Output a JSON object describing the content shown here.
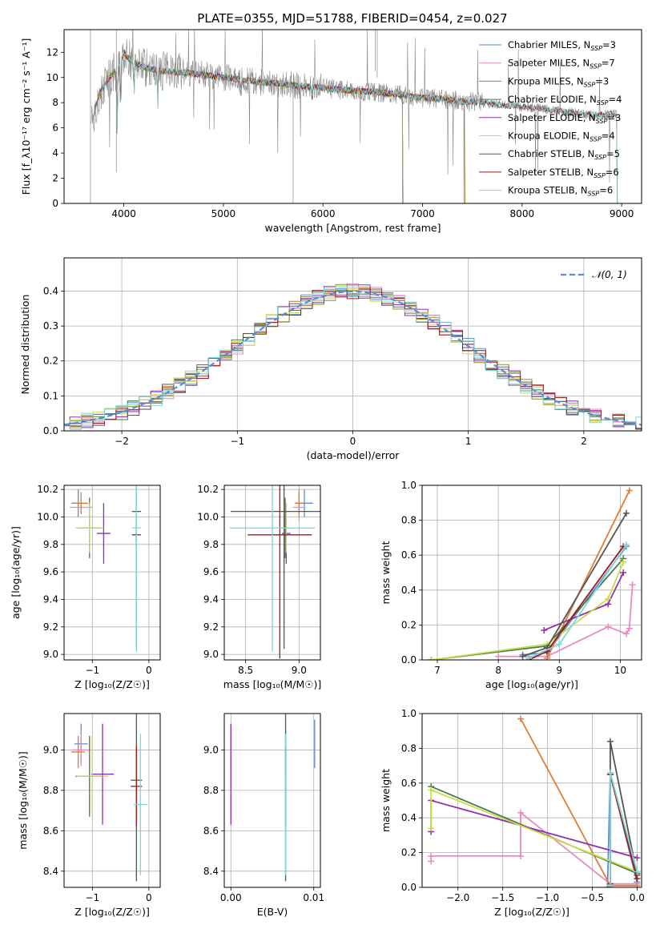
{
  "colors": {
    "chab_miles": "#5b8bd6",
    "salp_miles": "#e58ac2",
    "krou_miles": "#9a8a1a",
    "chab_elod": "#4a7a4a",
    "salp_elod": "#8e2fb0",
    "krou_elod": "#c9dd4a",
    "chab_stel": "#555555",
    "salp_stel": "#a01818",
    "krou_stel": "#7fd6d6",
    "data": "#888888",
    "orange": "#e07b32",
    "grid": "#b0b0b0"
  },
  "chart_data": [
    {
      "id": "spectrum",
      "type": "line",
      "title": "PLATE=0355, MJD=51788, FIBERID=0454, z=0.027",
      "xlabel": "wavelength [Angstrom, rest frame]",
      "ylabel": "Flux [f_λ10⁻¹⁷ erg cm⁻² s⁻¹ A⁻¹]",
      "xlim": [
        3400,
        9200
      ],
      "ylim": [
        0,
        13.8
      ],
      "xticks": [
        "4000",
        "5000",
        "6000",
        "7000",
        "8000",
        "9000"
      ],
      "yticks": [
        "0",
        "2",
        "4",
        "6",
        "8",
        "10",
        "12"
      ],
      "grid": false,
      "legend_position": "top-right",
      "legend": [
        {
          "label": "Chabrier MILES, N",
          "sub": "SSP",
          "n": "=3",
          "color": "#5b8bd6"
        },
        {
          "label": "Salpeter MILES, N",
          "sub": "SSP",
          "n": "=7",
          "color": "#e58ac2"
        },
        {
          "label": "Kroupa MILES, N",
          "sub": "SSP",
          "n": "=3",
          "color": "#9a8a1a"
        },
        {
          "label": "Chabrier ELODIE, N",
          "sub": "SSP",
          "n": "=4",
          "color": "#4a7a4a"
        },
        {
          "label": "Salpeter ELODIE, N",
          "sub": "SSP",
          "n": "=3",
          "color": "#8e2fb0"
        },
        {
          "label": "Kroupa ELODIE, N",
          "sub": "SSP",
          "n": "=4",
          "color": "#c9dd4a"
        },
        {
          "label": "Chabrier STELIB, N",
          "sub": "SSP",
          "n": "=5",
          "color": "#555555"
        },
        {
          "label": "Salpeter STELIB, N",
          "sub": "SSP",
          "n": "=6",
          "color": "#a01818"
        },
        {
          "label": "Kroupa STELIB, N",
          "sub": "SSP",
          "n": "=6",
          "color": "#7fd6d6"
        }
      ],
      "continuum": [
        [
          3700,
          7.2
        ],
        [
          3760,
          8.8
        ],
        [
          3850,
          10.0
        ],
        [
          3950,
          10.8
        ],
        [
          4000,
          12.0
        ],
        [
          4050,
          11.5
        ],
        [
          4150,
          11.0
        ],
        [
          4250,
          10.7
        ],
        [
          4400,
          10.5
        ],
        [
          4600,
          10.4
        ],
        [
          4800,
          10.2
        ],
        [
          5000,
          10.0
        ],
        [
          5200,
          9.8
        ],
        [
          5400,
          9.6
        ],
        [
          5600,
          9.5
        ],
        [
          5800,
          9.3
        ],
        [
          6000,
          9.2
        ],
        [
          6200,
          9.0
        ],
        [
          6400,
          8.9
        ],
        [
          6600,
          8.8
        ],
        [
          6800,
          8.6
        ],
        [
          7000,
          8.4
        ],
        [
          7200,
          8.3
        ],
        [
          7400,
          8.1
        ],
        [
          7600,
          8.0
        ],
        [
          7800,
          7.8
        ],
        [
          8000,
          7.7
        ],
        [
          8200,
          7.5
        ],
        [
          8400,
          7.3
        ],
        [
          8600,
          7.1
        ],
        [
          8800,
          7.0
        ],
        [
          8950,
          7.1
        ]
      ],
      "series_ranges": [
        {
          "name": "Chabrier MILES",
          "x_range": [
            3700,
            7420
          ]
        },
        {
          "name": "Salpeter MILES",
          "x_range": [
            3700,
            7420
          ]
        },
        {
          "name": "Kroupa MILES",
          "x_range": [
            3700,
            7420
          ]
        },
        {
          "name": "Chabrier ELODIE",
          "x_range": [
            3700,
            6800
          ]
        },
        {
          "name": "Salpeter ELODIE",
          "x_range": [
            3700,
            6800
          ]
        },
        {
          "name": "Kroupa ELODIE",
          "x_range": [
            3700,
            6800
          ]
        },
        {
          "name": "Chabrier STELIB",
          "x_range": [
            3700,
            8950
          ]
        },
        {
          "name": "Salpeter STELIB",
          "x_range": [
            3700,
            8950
          ]
        },
        {
          "name": "Kroupa STELIB",
          "x_range": [
            3700,
            8950
          ]
        }
      ],
      "absorption": [
        [
          3933,
          5.0
        ],
        [
          3968,
          4.5
        ],
        [
          4102,
          2.0
        ],
        [
          4340,
          2.0
        ],
        [
          5175,
          1.0
        ],
        [
          5890,
          1.0
        ]
      ]
    },
    {
      "id": "residuals",
      "type": "histogram",
      "xlabel": "(data-model)/error",
      "ylabel": "Normed distribution",
      "xlim": [
        -2.5,
        2.5
      ],
      "ylim": [
        0,
        0.495
      ],
      "xticks": [
        "−2",
        "−1",
        "0",
        "1",
        "2"
      ],
      "yticks": [
        "0.0",
        "0.1",
        "0.2",
        "0.3",
        "0.4"
      ],
      "grid": true,
      "legend_position": "top-right",
      "legend": [
        {
          "label": "𝒩(0, 1)",
          "color": "#5b8bd6"
        }
      ],
      "bin_width": 0.1
    },
    {
      "id": "age_vs_Z",
      "type": "errorbar",
      "xlabel": "Z [log₁₀(Z/Z☉)]",
      "ylabel": "age  [log₁₀(age/yr)]",
      "xlim": [
        -1.5,
        0.2
      ],
      "ylim": [
        8.96,
        10.23
      ],
      "xticks": [
        "−1",
        "0"
      ],
      "yticks": [
        "9.0",
        "9.2",
        "9.4",
        "9.6",
        "9.8",
        "10.0",
        "10.2"
      ],
      "points": [
        {
          "x": -1.25,
          "y": 10.1,
          "xerr": 0.12,
          "yerr": 0.1,
          "color": "#5b8bd6"
        },
        {
          "x": -1.2,
          "y": 10.07,
          "xerr": 0.2,
          "yerr": 0.05,
          "color": "#e58ac2"
        },
        {
          "x": -1.2,
          "y": 10.1,
          "xerr": 0.12,
          "yerr": 0.08,
          "color": "#e07b32"
        },
        {
          "x": -1.05,
          "y": 9.92,
          "xerr": 0.2,
          "yerr": 0.22,
          "color": "#4a7a4a"
        },
        {
          "x": -0.8,
          "y": 9.88,
          "xerr": 0.12,
          "yerr": 0.22,
          "color": "#8e2fb0"
        },
        {
          "x": -1.05,
          "y": 9.92,
          "xerr": 0.25,
          "yerr": 0.18,
          "color": "#c9dd4a"
        },
        {
          "x": -0.22,
          "y": 10.04,
          "xerr": 0.08,
          "yerr": 1.0,
          "color": "#555555"
        },
        {
          "x": -0.22,
          "y": 9.87,
          "xerr": 0.08,
          "yerr": 0.09,
          "color": "#a01818"
        },
        {
          "x": -0.22,
          "y": 9.92,
          "xerr": 0.08,
          "yerr": 0.9,
          "color": "#7fd6d6"
        }
      ]
    },
    {
      "id": "age_vs_mass",
      "type": "errorbar",
      "xlabel": "mass [log₁₀(M/M☉)]",
      "ylabel": "",
      "xlim": [
        8.3,
        9.2
      ],
      "ylim": [
        8.96,
        10.23
      ],
      "xticks": [
        "8.5",
        "9.0"
      ],
      "yticks": [
        "9.0",
        "9.2",
        "9.4",
        "9.6",
        "9.8",
        "10.0",
        "10.2"
      ],
      "points": [
        {
          "x": 9.05,
          "y": 10.1,
          "xerr": 0.08,
          "yerr": 0.1,
          "color": "#5b8bd6"
        },
        {
          "x": 9.0,
          "y": 10.07,
          "xerr": 0.06,
          "yerr": 0.1,
          "color": "#e58ac2"
        },
        {
          "x": 9.0,
          "y": 10.1,
          "xerr": 0.04,
          "yerr": 0.1,
          "color": "#e07b32"
        },
        {
          "x": 8.87,
          "y": 9.92,
          "xerr": 0.04,
          "yerr": 0.22,
          "color": "#4a7a4a"
        },
        {
          "x": 8.88,
          "y": 9.88,
          "xerr": 0.04,
          "yerr": 0.22,
          "color": "#8e2fb0"
        },
        {
          "x": 8.88,
          "y": 9.92,
          "xerr": 0.06,
          "yerr": 0.18,
          "color": "#c9dd4a"
        },
        {
          "x": 8.86,
          "y": 10.04,
          "xerr": 0.5,
          "yerr": 1.0,
          "color": "#555555"
        },
        {
          "x": 8.82,
          "y": 9.87,
          "xerr": 0.3,
          "yerr": 0.9,
          "color": "#a01818"
        },
        {
          "x": 8.75,
          "y": 9.92,
          "xerr": 0.4,
          "yerr": 0.9,
          "color": "#7fd6d6"
        }
      ]
    },
    {
      "id": "massweight_vs_age",
      "type": "line",
      "xlabel": "age  [log₁₀(age/yr)]",
      "ylabel": "mass weight",
      "xlim": [
        6.75,
        10.35
      ],
      "ylim": [
        0,
        1.0
      ],
      "xticks": [
        "7",
        "8",
        "9",
        "10"
      ],
      "yticks": [
        "0.0",
        "0.2",
        "0.4",
        "0.6",
        "0.8",
        "1.0"
      ],
      "grid": true,
      "series": [
        {
          "color": "#5b8bd6",
          "x": [
            8.4,
            8.8,
            10.1
          ],
          "y": [
            0.03,
            0.04,
            0.65
          ]
        },
        {
          "color": "#e58ac2",
          "x": [
            8.0,
            8.8,
            9.8,
            10.1,
            10.15,
            10.2
          ],
          "y": [
            0.02,
            0.02,
            0.19,
            0.15,
            0.18,
            0.43
          ]
        },
        {
          "color": "#e07b32",
          "x": [
            8.8,
            10.15
          ],
          "y": [
            0.01,
            0.97
          ]
        },
        {
          "color": "#4a7a4a",
          "x": [
            6.9,
            8.8,
            10.05
          ],
          "y": [
            0.0,
            0.08,
            0.58
          ]
        },
        {
          "color": "#8e2fb0",
          "x": [
            8.75,
            9.8,
            10.05
          ],
          "y": [
            0.17,
            0.32,
            0.5
          ]
        },
        {
          "color": "#c9dd4a",
          "x": [
            6.9,
            8.8,
            9.8,
            10.05
          ],
          "y": [
            0.0,
            0.09,
            0.35,
            0.56
          ]
        },
        {
          "color": "#555555",
          "x": [
            8.4,
            8.8,
            10.1
          ],
          "y": [
            0.02,
            0.07,
            0.84
          ]
        },
        {
          "color": "#a01818",
          "x": [
            8.5,
            8.8,
            10.05
          ],
          "y": [
            0.0,
            0.05,
            0.65
          ]
        },
        {
          "color": "#7fd6d6",
          "x": [
            8.5,
            9.0,
            10.1
          ],
          "y": [
            0.01,
            0.09,
            0.66
          ]
        }
      ]
    },
    {
      "id": "mass_vs_Z",
      "type": "errorbar",
      "xlabel": "Z [log₁₀(Z/Z☉)]",
      "ylabel": "mass [log₁₀(M/M☉)]",
      "xlim": [
        -1.5,
        0.2
      ],
      "ylim": [
        8.32,
        9.18
      ],
      "xticks": [
        "−1",
        "0"
      ],
      "yticks": [
        "8.4",
        "8.6",
        "8.8",
        "9.0"
      ],
      "points": [
        {
          "x": -1.2,
          "y": 9.03,
          "xerr": 0.12,
          "yerr": 0.1,
          "color": "#5b8bd6"
        },
        {
          "x": -1.2,
          "y": 9.0,
          "xerr": 0.15,
          "yerr": 0.08,
          "color": "#e58ac2"
        },
        {
          "x": -1.25,
          "y": 8.99,
          "xerr": 0.12,
          "yerr": 0.08,
          "color": "#e07b32"
        },
        {
          "x": -1.05,
          "y": 8.87,
          "xerr": 0.25,
          "yerr": 0.2,
          "color": "#4a7a4a"
        },
        {
          "x": -0.82,
          "y": 8.88,
          "xerr": 0.2,
          "yerr": 0.25,
          "color": "#8e2fb0"
        },
        {
          "x": -1.0,
          "y": 8.87,
          "xerr": 0.28,
          "yerr": 0.2,
          "color": "#c9dd4a"
        },
        {
          "x": -0.22,
          "y": 8.85,
          "xerr": 0.1,
          "yerr": 0.5,
          "color": "#555555"
        },
        {
          "x": -0.22,
          "y": 8.82,
          "xerr": 0.1,
          "yerr": 0.2,
          "color": "#a01818"
        },
        {
          "x": -0.15,
          "y": 8.73,
          "xerr": 0.12,
          "yerr": 0.35,
          "color": "#7fd6d6"
        }
      ]
    },
    {
      "id": "mass_vs_ebv",
      "type": "errorbar",
      "xlabel": "E(B-V)",
      "ylabel": "",
      "xlim": [
        -0.0008,
        0.0108
      ],
      "ylim": [
        8.32,
        9.18
      ],
      "xticks": [
        "0.00",
        "0.01"
      ],
      "yticks": [
        "8.4",
        "8.6",
        "8.8",
        "9.0"
      ],
      "points": [
        {
          "x": 0.0,
          "y": 8.88,
          "yerr": 0.2,
          "color": "#c9dd4a"
        },
        {
          "x": 0.0,
          "y": 9.0,
          "yerr": 0.12,
          "color": "#e58ac2"
        },
        {
          "x": 0.0,
          "y": 8.88,
          "yerr": 0.25,
          "color": "#8e2fb0"
        },
        {
          "x": 0.0066,
          "y": 8.99,
          "yerr": 0.1,
          "color": "#e07b32"
        },
        {
          "x": 0.0066,
          "y": 8.85,
          "yerr": 0.5,
          "color": "#555555"
        },
        {
          "x": 0.0066,
          "y": 8.82,
          "yerr": 0.2,
          "color": "#a01818"
        },
        {
          "x": 0.0066,
          "y": 8.73,
          "yerr": 0.35,
          "color": "#7fd6d6"
        },
        {
          "x": 0.0101,
          "y": 9.03,
          "yerr": 0.12,
          "color": "#5b8bd6"
        }
      ]
    },
    {
      "id": "massweight_vs_Z",
      "type": "line",
      "xlabel": "Z [log₁₀(Z/Z☉)]",
      "ylabel": "mass weight",
      "xlim": [
        -2.4,
        0.05
      ],
      "ylim": [
        0,
        1.0
      ],
      "xticks": [
        "−2.0",
        "−1.5",
        "−1.0",
        "−0.5",
        "0.0"
      ],
      "yticks": [
        "0.0",
        "0.2",
        "0.4",
        "0.6",
        "0.8",
        "1.0"
      ],
      "grid": true,
      "series": [
        {
          "color": "#5b8bd6",
          "x": [
            -0.33,
            -0.3,
            0.0
          ],
          "y": [
            0.0,
            0.65,
            0.03
          ]
        },
        {
          "color": "#e58ac2",
          "x": [
            -2.3,
            -2.3,
            -1.3,
            -1.3,
            -0.3,
            0.0
          ],
          "y": [
            0.15,
            0.18,
            0.18,
            0.43,
            0.02,
            0.02
          ]
        },
        {
          "color": "#e07b32",
          "x": [
            -1.3,
            -0.3,
            0.0
          ],
          "y": [
            0.97,
            0.01,
            0.01
          ]
        },
        {
          "color": "#4a7a4a",
          "x": [
            -2.3,
            0.0
          ],
          "y": [
            0.58,
            0.08
          ]
        },
        {
          "color": "#8e2fb0",
          "x": [
            -2.3,
            -2.3,
            0.0
          ],
          "y": [
            0.32,
            0.5,
            0.17
          ]
        },
        {
          "color": "#c9dd4a",
          "x": [
            -2.3,
            -2.3,
            0.0
          ],
          "y": [
            0.34,
            0.56,
            0.09
          ]
        },
        {
          "color": "#555555",
          "x": [
            -0.3,
            -0.3,
            0.0
          ],
          "y": [
            0.02,
            0.84,
            0.07
          ]
        },
        {
          "color": "#a01818",
          "x": [
            -0.3,
            -0.3,
            0.0
          ],
          "y": [
            0.0,
            0.65,
            0.05
          ]
        },
        {
          "color": "#7fd6d6",
          "x": [
            -0.3,
            -0.3,
            0.0
          ],
          "y": [
            0.01,
            0.66,
            0.09
          ]
        }
      ]
    }
  ]
}
